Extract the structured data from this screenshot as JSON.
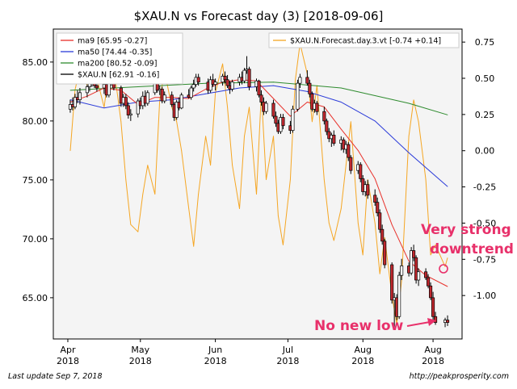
{
  "chart_data": {
    "type": "candlestick",
    "title": "$XAU.N vs Forecast day (3)  [2018-09-06]",
    "grid": false,
    "left_axis": {
      "ylim": [
        61.5,
        87.8
      ],
      "ticks": [
        65,
        70,
        75,
        80,
        85
      ],
      "tick_labels": [
        "65.00",
        "70.00",
        "75.00",
        "80.00",
        "85.00"
      ]
    },
    "right_axis": {
      "ylim": [
        -1.3,
        0.84
      ],
      "ticks": [
        0.75,
        0.5,
        0.25,
        0.0,
        -0.25,
        -0.5,
        -0.75,
        -1.0
      ],
      "tick_labels": [
        "0.75",
        "0.50",
        "0.25",
        "0.00",
        "-0.25",
        "-0.50",
        "-0.75",
        "-1.00"
      ]
    },
    "x_axis": {
      "start": "2018-03-26",
      "end": "2018-09-11",
      "ticks": [
        {
          "date": "2018-04-01",
          "month": "Apr",
          "year": "2018"
        },
        {
          "date": "2018-05-01",
          "month": "May",
          "year": "2018"
        },
        {
          "date": "2018-06-01",
          "month": "Jun",
          "year": "2018"
        },
        {
          "date": "2018-07-01",
          "month": "Jul",
          "year": "2018"
        },
        {
          "date": "2018-08-01",
          "month": "Aug",
          "year": "2018"
        },
        {
          "date": "2018-08-30",
          "month": "Aug",
          "year": "2018"
        }
      ]
    },
    "legend_left": {
      "placement": "top-left",
      "entries": [
        {
          "label": "ma9 [65.95 -0.27]",
          "color": "#e8302a"
        },
        {
          "label": "ma50 [74.44 -0.35]",
          "color": "#2b3bd9"
        },
        {
          "label": "ma200 [80.52 -0.09]",
          "color": "#2e8b2e"
        },
        {
          "label": "$XAU.N [62.91 -0.16]",
          "color": "#000000"
        }
      ]
    },
    "legend_right": {
      "placement": "top-right",
      "entries": [
        {
          "label": "$XAU.N.Forecast.day.3.vt [-0.74 +0.14]",
          "color": "#f5a623"
        }
      ]
    },
    "colors": {
      "up": "#ffffff",
      "down": "#c0282e",
      "ma9": "#e8302a",
      "ma50": "#2b3bd9",
      "ma200": "#2e8b2e",
      "forecast": "#f5a623",
      "annotation": "#e8306a",
      "plot_bg": "#f4f4f4"
    },
    "candles": [
      [
        "2018-04-02",
        81.0,
        81.8,
        80.7,
        81.4
      ],
      [
        "2018-04-03",
        81.4,
        82.0,
        80.9,
        81.2
      ],
      [
        "2018-04-04",
        81.2,
        82.3,
        81.0,
        82.0
      ],
      [
        "2018-04-05",
        82.0,
        82.6,
        81.5,
        81.8
      ],
      [
        "2018-04-06",
        81.8,
        82.8,
        81.4,
        82.4
      ],
      [
        "2018-04-09",
        82.4,
        83.1,
        82.0,
        82.9
      ],
      [
        "2018-04-10",
        82.9,
        83.6,
        82.5,
        83.3
      ],
      [
        "2018-04-11",
        83.3,
        84.0,
        82.9,
        83.6
      ],
      [
        "2018-04-12",
        83.6,
        83.9,
        82.8,
        83.0
      ],
      [
        "2018-04-13",
        83.0,
        83.5,
        82.5,
        82.8
      ],
      [
        "2018-04-16",
        82.8,
        83.4,
        82.3,
        83.1
      ],
      [
        "2018-04-17",
        83.1,
        83.3,
        82.0,
        82.2
      ],
      [
        "2018-04-18",
        82.2,
        83.5,
        82.0,
        83.3
      ],
      [
        "2018-04-19",
        83.3,
        84.2,
        83.0,
        83.9
      ],
      [
        "2018-04-20",
        83.9,
        84.2,
        82.6,
        82.8
      ],
      [
        "2018-04-23",
        82.8,
        83.0,
        81.2,
        81.5
      ],
      [
        "2018-04-24",
        81.5,
        82.3,
        81.2,
        82.0
      ],
      [
        "2018-04-25",
        82.0,
        82.3,
        81.0,
        81.3
      ],
      [
        "2018-04-26",
        81.3,
        81.6,
        80.2,
        80.5
      ],
      [
        "2018-04-27",
        80.5,
        81.0,
        80.0,
        80.6
      ],
      [
        "2018-04-30",
        80.6,
        81.9,
        80.3,
        81.7
      ],
      [
        "2018-05-01",
        81.7,
        82.0,
        81.0,
        81.3
      ],
      [
        "2018-05-02",
        81.3,
        82.5,
        81.0,
        82.1
      ],
      [
        "2018-05-03",
        82.1,
        82.6,
        81.2,
        81.5
      ],
      [
        "2018-05-04",
        81.5,
        82.6,
        81.3,
        82.4
      ],
      [
        "2018-05-07",
        82.4,
        83.5,
        82.2,
        83.2
      ],
      [
        "2018-05-08",
        83.2,
        83.4,
        82.4,
        82.6
      ],
      [
        "2018-05-09",
        82.6,
        83.0,
        82.2,
        82.7
      ],
      [
        "2018-05-10",
        82.7,
        82.9,
        81.5,
        81.7
      ],
      [
        "2018-05-11",
        81.7,
        82.5,
        81.5,
        82.2
      ],
      [
        "2018-05-14",
        82.2,
        82.5,
        81.2,
        81.4
      ],
      [
        "2018-05-15",
        81.4,
        81.6,
        80.0,
        80.3
      ],
      [
        "2018-05-16",
        80.3,
        81.8,
        80.1,
        81.6
      ],
      [
        "2018-05-17",
        81.6,
        82.0,
        80.9,
        81.1
      ],
      [
        "2018-05-18",
        81.1,
        82.4,
        81.0,
        82.2
      ],
      [
        "2018-05-21",
        82.2,
        82.7,
        81.9,
        82.0
      ],
      [
        "2018-05-22",
        82.0,
        83.0,
        81.8,
        82.8
      ],
      [
        "2018-05-23",
        82.8,
        83.5,
        82.5,
        83.1
      ],
      [
        "2018-05-24",
        83.1,
        84.0,
        82.9,
        83.7
      ],
      [
        "2018-05-25",
        83.7,
        84.0,
        83.0,
        83.3
      ],
      [
        "2018-05-29",
        83.3,
        83.6,
        82.3,
        82.6
      ],
      [
        "2018-05-30",
        82.6,
        83.8,
        82.4,
        83.5
      ],
      [
        "2018-05-31",
        83.5,
        84.0,
        82.9,
        83.1
      ],
      [
        "2018-06-01",
        83.1,
        83.6,
        82.6,
        83.3
      ],
      [
        "2018-06-04",
        83.3,
        84.0,
        83.0,
        83.8
      ],
      [
        "2018-06-05",
        83.8,
        84.2,
        83.2,
        83.5
      ],
      [
        "2018-06-06",
        83.5,
        83.9,
        82.8,
        83.0
      ],
      [
        "2018-06-07",
        83.0,
        83.4,
        82.3,
        82.7
      ],
      [
        "2018-06-08",
        82.7,
        83.5,
        82.5,
        83.3
      ],
      [
        "2018-06-11",
        83.3,
        84.0,
        83.0,
        83.7
      ],
      [
        "2018-06-12",
        83.7,
        84.2,
        83.1,
        83.4
      ],
      [
        "2018-06-13",
        83.4,
        84.5,
        83.2,
        84.3
      ],
      [
        "2018-06-14",
        84.3,
        85.5,
        84.0,
        84.4
      ],
      [
        "2018-06-15",
        84.4,
        84.6,
        82.6,
        82.9
      ],
      [
        "2018-06-18",
        82.9,
        83.6,
        82.5,
        83.4
      ],
      [
        "2018-06-19",
        83.4,
        83.5,
        82.0,
        82.2
      ],
      [
        "2018-06-20",
        82.2,
        82.6,
        81.3,
        81.6
      ],
      [
        "2018-06-21",
        81.6,
        82.0,
        80.5,
        80.8
      ],
      [
        "2018-06-22",
        80.8,
        81.7,
        80.6,
        81.5
      ],
      [
        "2018-06-25",
        81.5,
        81.8,
        80.2,
        80.4
      ],
      [
        "2018-06-26",
        80.4,
        80.8,
        79.5,
        79.8
      ],
      [
        "2018-06-27",
        79.8,
        80.1,
        78.9,
        79.1
      ],
      [
        "2018-06-28",
        79.1,
        80.6,
        78.9,
        80.3
      ],
      [
        "2018-06-29",
        80.3,
        80.6,
        79.3,
        79.6
      ],
      [
        "2018-07-02",
        79.6,
        80.0,
        78.9,
        79.2
      ],
      [
        "2018-07-03",
        79.2,
        81.3,
        79.0,
        81.0
      ],
      [
        "2018-07-05",
        81.0,
        83.5,
        80.8,
        83.2
      ],
      [
        "2018-07-06",
        83.2,
        84.0,
        82.8,
        83.7
      ],
      [
        "2018-07-09",
        83.7,
        84.3,
        83.0,
        83.2
      ],
      [
        "2018-07-10",
        83.2,
        83.5,
        82.0,
        82.3
      ],
      [
        "2018-07-11",
        82.3,
        82.5,
        80.8,
        81.0
      ],
      [
        "2018-07-12",
        81.0,
        81.8,
        80.7,
        81.5
      ],
      [
        "2018-07-13",
        81.5,
        81.7,
        80.5,
        80.8
      ],
      [
        "2018-07-16",
        80.8,
        81.2,
        79.7,
        80.0
      ],
      [
        "2018-07-17",
        80.0,
        80.2,
        78.8,
        79.1
      ],
      [
        "2018-07-18",
        79.1,
        79.4,
        78.2,
        78.5
      ],
      [
        "2018-07-19",
        78.5,
        79.0,
        77.8,
        78.8
      ],
      [
        "2018-07-20",
        78.8,
        79.2,
        77.9,
        78.1
      ],
      [
        "2018-07-23",
        78.1,
        78.7,
        77.5,
        78.4
      ],
      [
        "2018-07-24",
        78.4,
        78.6,
        77.3,
        77.6
      ],
      [
        "2018-07-25",
        77.6,
        78.3,
        77.2,
        78.0
      ],
      [
        "2018-07-26",
        78.0,
        78.2,
        76.6,
        76.9
      ],
      [
        "2018-07-27",
        76.9,
        77.1,
        75.5,
        75.8
      ],
      [
        "2018-07-30",
        75.8,
        76.6,
        75.5,
        76.3
      ],
      [
        "2018-07-31",
        76.3,
        76.5,
        74.8,
        75.1
      ],
      [
        "2018-08-01",
        75.1,
        75.4,
        73.7,
        74.0
      ],
      [
        "2018-08-02",
        74.0,
        74.9,
        73.6,
        74.6
      ],
      [
        "2018-08-03",
        74.6,
        75.0,
        73.4,
        73.7
      ],
      [
        "2018-08-06",
        73.7,
        74.2,
        72.8,
        73.1
      ],
      [
        "2018-08-07",
        73.1,
        73.5,
        71.9,
        72.2
      ],
      [
        "2018-08-08",
        72.2,
        72.5,
        70.5,
        70.8
      ],
      [
        "2018-08-09",
        70.8,
        71.2,
        69.5,
        69.8
      ],
      [
        "2018-08-10",
        69.8,
        70.0,
        67.5,
        67.8
      ],
      [
        "2018-08-13",
        67.8,
        68.0,
        64.5,
        64.8
      ],
      [
        "2018-08-14",
        64.8,
        65.4,
        62.5,
        65.0
      ],
      [
        "2018-08-15",
        65.0,
        65.3,
        63.1,
        63.4
      ],
      [
        "2018-08-16",
        63.4,
        67.2,
        63.2,
        66.9
      ],
      [
        "2018-08-17",
        66.9,
        68.3,
        66.5,
        67.7
      ],
      [
        "2018-08-20",
        67.7,
        68.0,
        66.8,
        67.1
      ],
      [
        "2018-08-21",
        67.1,
        69.3,
        66.9,
        69.0
      ],
      [
        "2018-08-22",
        69.0,
        69.5,
        68.1,
        68.4
      ],
      [
        "2018-08-23",
        68.4,
        68.6,
        66.2,
        66.5
      ],
      [
        "2018-08-24",
        66.5,
        67.5,
        66.0,
        67.2
      ],
      [
        "2018-08-27",
        67.2,
        67.5,
        66.5,
        66.7
      ],
      [
        "2018-08-28",
        66.7,
        67.0,
        65.8,
        66.0
      ],
      [
        "2018-08-29",
        66.0,
        66.3,
        64.8,
        65.0
      ],
      [
        "2018-08-30",
        65.0,
        65.5,
        63.1,
        63.4
      ],
      [
        "2018-08-31",
        63.4,
        63.8,
        62.7,
        62.9
      ],
      [
        "2018-09-04",
        62.9,
        63.3,
        62.5,
        63.1
      ],
      [
        "2018-09-05",
        63.1,
        63.5,
        62.6,
        62.9
      ]
    ],
    "ma9": [
      [
        "2018-04-02",
        81.6
      ],
      [
        "2018-04-09",
        82.1
      ],
      [
        "2018-04-16",
        82.8
      ],
      [
        "2018-04-23",
        82.6
      ],
      [
        "2018-04-30",
        81.4
      ],
      [
        "2018-05-07",
        82.0
      ],
      [
        "2018-05-14",
        82.0
      ],
      [
        "2018-05-21",
        81.9
      ],
      [
        "2018-05-28",
        82.7
      ],
      [
        "2018-06-04",
        83.3
      ],
      [
        "2018-06-11",
        83.5
      ],
      [
        "2018-06-18",
        83.4
      ],
      [
        "2018-06-25",
        81.9
      ],
      [
        "2018-07-02",
        80.4
      ],
      [
        "2018-07-09",
        81.6
      ],
      [
        "2018-07-16",
        81.2
      ],
      [
        "2018-07-23",
        79.3
      ],
      [
        "2018-07-30",
        77.5
      ],
      [
        "2018-08-06",
        75.1
      ],
      [
        "2018-08-13",
        71.2
      ],
      [
        "2018-08-20",
        68.1
      ],
      [
        "2018-08-27",
        66.9
      ],
      [
        "2018-09-05",
        65.95
      ]
    ],
    "ma50": [
      [
        "2018-04-02",
        81.8
      ],
      [
        "2018-04-16",
        81.1
      ],
      [
        "2018-04-30",
        81.6
      ],
      [
        "2018-05-14",
        81.8
      ],
      [
        "2018-05-28",
        82.3
      ],
      [
        "2018-06-11",
        82.8
      ],
      [
        "2018-06-25",
        83.0
      ],
      [
        "2018-07-09",
        82.5
      ],
      [
        "2018-07-23",
        81.6
      ],
      [
        "2018-08-06",
        80.0
      ],
      [
        "2018-08-20",
        77.3
      ],
      [
        "2018-09-05",
        74.44
      ]
    ],
    "ma200": [
      [
        "2018-04-02",
        82.6
      ],
      [
        "2018-04-30",
        82.9
      ],
      [
        "2018-05-28",
        83.2
      ],
      [
        "2018-06-25",
        83.3
      ],
      [
        "2018-07-23",
        82.8
      ],
      [
        "2018-08-20",
        81.5
      ],
      [
        "2018-09-05",
        80.52
      ]
    ],
    "forecast": [
      [
        "2018-04-02",
        0.0
      ],
      [
        "2018-04-04",
        0.42
      ],
      [
        "2018-04-06",
        0.57
      ],
      [
        "2018-04-09",
        0.45
      ],
      [
        "2018-04-11",
        0.6
      ],
      [
        "2018-04-13",
        0.5
      ],
      [
        "2018-04-16",
        0.3
      ],
      [
        "2018-04-18",
        0.55
      ],
      [
        "2018-04-20",
        0.58
      ],
      [
        "2018-04-23",
        0.2
      ],
      [
        "2018-04-25",
        -0.2
      ],
      [
        "2018-04-27",
        -0.51
      ],
      [
        "2018-04-30",
        -0.56
      ],
      [
        "2018-05-02",
        -0.3
      ],
      [
        "2018-05-04",
        -0.1
      ],
      [
        "2018-05-07",
        -0.3
      ],
      [
        "2018-05-09",
        0.35
      ],
      [
        "2018-05-11",
        0.55
      ],
      [
        "2018-05-14",
        0.3
      ],
      [
        "2018-05-16",
        0.2
      ],
      [
        "2018-05-18",
        0.0
      ],
      [
        "2018-05-21",
        -0.4
      ],
      [
        "2018-05-23",
        -0.66
      ],
      [
        "2018-05-25",
        -0.3
      ],
      [
        "2018-05-28",
        0.1
      ],
      [
        "2018-05-30",
        -0.1
      ],
      [
        "2018-06-01",
        0.4
      ],
      [
        "2018-06-04",
        0.6
      ],
      [
        "2018-06-06",
        0.3
      ],
      [
        "2018-06-08",
        -0.1
      ],
      [
        "2018-06-11",
        -0.4
      ],
      [
        "2018-06-13",
        0.1
      ],
      [
        "2018-06-15",
        0.3
      ],
      [
        "2018-06-18",
        -0.3
      ],
      [
        "2018-06-20",
        0.4
      ],
      [
        "2018-06-22",
        -0.2
      ],
      [
        "2018-06-25",
        0.1
      ],
      [
        "2018-06-27",
        -0.45
      ],
      [
        "2018-06-29",
        -0.65
      ],
      [
        "2018-07-02",
        -0.2
      ],
      [
        "2018-07-04",
        0.48
      ],
      [
        "2018-07-06",
        0.74
      ],
      [
        "2018-07-09",
        0.53
      ],
      [
        "2018-07-11",
        0.2
      ],
      [
        "2018-07-13",
        0.45
      ],
      [
        "2018-07-16",
        -0.2
      ],
      [
        "2018-07-18",
        -0.5
      ],
      [
        "2018-07-20",
        -0.62
      ],
      [
        "2018-07-23",
        -0.4
      ],
      [
        "2018-07-25",
        -0.1
      ],
      [
        "2018-07-27",
        0.2
      ],
      [
        "2018-07-30",
        -0.5
      ],
      [
        "2018-08-01",
        -0.72
      ],
      [
        "2018-08-03",
        -0.2
      ],
      [
        "2018-08-06",
        -0.5
      ],
      [
        "2018-08-08",
        -0.85
      ],
      [
        "2018-08-10",
        -0.6
      ],
      [
        "2018-08-13",
        -1.0
      ],
      [
        "2018-08-15",
        -1.2
      ],
      [
        "2018-08-17",
        -0.9
      ],
      [
        "2018-08-20",
        0.1
      ],
      [
        "2018-08-22",
        0.35
      ],
      [
        "2018-08-24",
        0.2
      ],
      [
        "2018-08-27",
        -0.2
      ],
      [
        "2018-08-29",
        -0.72
      ],
      [
        "2018-08-31",
        -0.65
      ],
      [
        "2018-09-04",
        -0.8
      ],
      [
        "2018-09-05",
        -0.74
      ]
    ],
    "annotations": [
      {
        "text": "Very strong",
        "color": "#e8306a"
      },
      {
        "text": "downtrend",
        "color": "#e8306a"
      },
      {
        "text": "No new low",
        "color": "#e8306a"
      }
    ]
  },
  "footer": {
    "left": "Last update Sep  7, 2018",
    "right": "http://peakprosperity.com"
  }
}
